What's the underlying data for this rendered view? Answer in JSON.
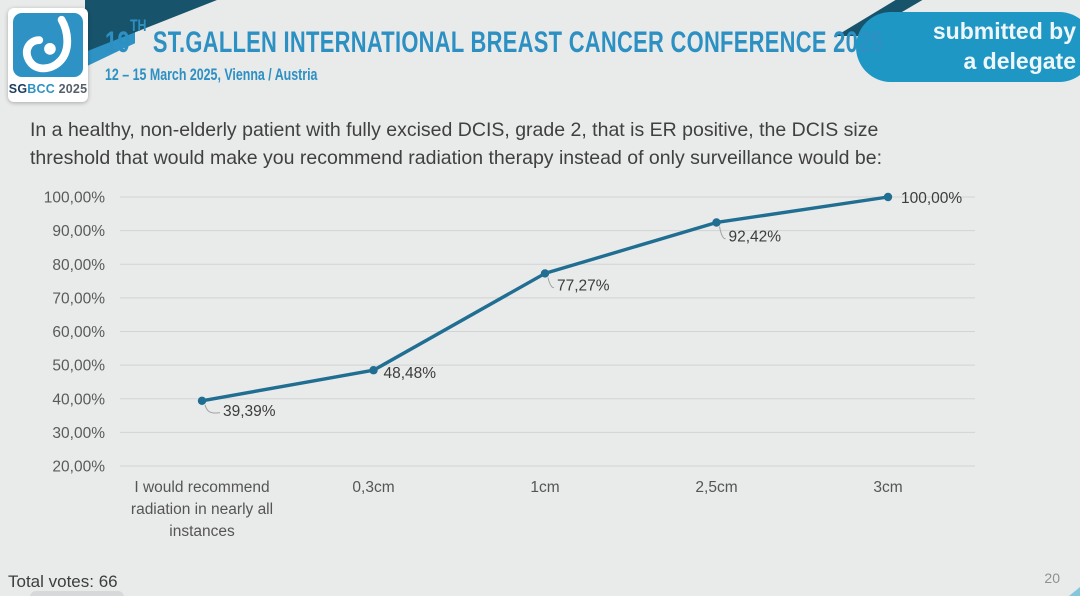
{
  "header": {
    "logo": {
      "sg": "SG",
      "bcc": "BCC",
      "year": " 2025"
    },
    "title_num": "19",
    "title_sup": "TH",
    "title_rest": " ST.GALLEN INTERNATIONAL BREAST CANCER CONFERENCE 2025",
    "subtitle": "12 – 15 March 2025, Vienna / Austria",
    "badge_line1": "submitted by",
    "badge_line2": "a delegate"
  },
  "question": "In a healthy, non-elderly patient with fully excised DCIS, grade 2, that is ER positive, the DCIS size threshold that would make you recommend radiation therapy instead of only surveillance would be:",
  "chart_data": {
    "type": "line",
    "title": "",
    "xlabel": "",
    "ylabel": "",
    "categories": [
      "I would recommend radiation in nearly all instances",
      "0,3cm",
      "1cm",
      "2,5cm",
      "3cm"
    ],
    "values": [
      39.39,
      48.48,
      77.27,
      92.42,
      100.0
    ],
    "value_labels": [
      "39,39%",
      "48,48%",
      "77,27%",
      "92,42%",
      "100,00%"
    ],
    "y_ticks": [
      "100,00%",
      "90,00%",
      "80,00%",
      "70,00%",
      "60,00%",
      "50,00%",
      "40,00%",
      "30,00%",
      "20,00%"
    ],
    "ylim": [
      20,
      100
    ],
    "grid": true,
    "legend": "none",
    "line_color": "#206e91",
    "grid_color": "#d2d3d4"
  },
  "footer": {
    "total_votes": "Total votes: 66",
    "page_number": "20"
  }
}
